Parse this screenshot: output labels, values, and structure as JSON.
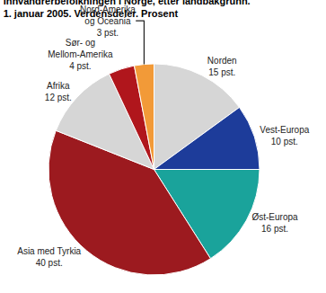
{
  "chart_data": {
    "type": "pie",
    "title": [
      "Innvandrerbefolkningen i Norge, etter landbakgrunn.",
      "1. januar 2005. Verdensdeler. Prosent"
    ],
    "categories": [
      "Norden",
      "Vest-Europa",
      "Øst-Europa",
      "Asia med Tyrkia",
      "Afrika",
      "Sør- og\nMellom-Amerika",
      "Nord-Amerika\nog Oceania"
    ],
    "values": [
      15,
      10,
      16,
      40,
      12,
      4,
      3
    ],
    "value_labels": [
      "15 pst.",
      "10 pst.",
      "16 pst.",
      "40 pst.",
      "12 pst.",
      "4 pst.",
      "3 pst."
    ],
    "colors": [
      "#d6d6d6",
      "#1d3c9a",
      "#1aa39b",
      "#9c1a1f",
      "#d6d6d6",
      "#b0161c",
      "#f29a38"
    ],
    "data_labels": true
  }
}
